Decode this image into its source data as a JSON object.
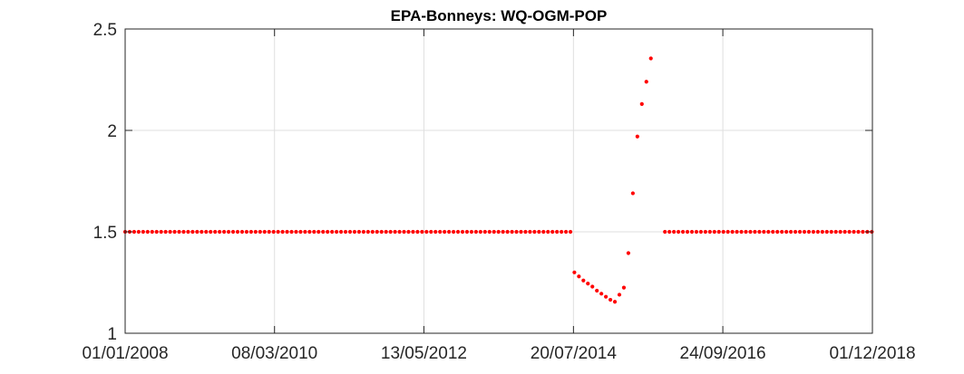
{
  "chart_data": {
    "type": "scatter",
    "title": "EPA-Bonneys: WQ-OGM-POP",
    "xlabel": "",
    "ylabel": "",
    "x_axis_type": "date",
    "x_range": [
      "2008-01-01",
      "2018-12-01"
    ],
    "ylim": [
      1,
      2.5
    ],
    "grid": true,
    "marker_color": "#ff0000",
    "x_ticks": [
      {
        "date": "2008-01-01",
        "label": "01/01/2008"
      },
      {
        "date": "2010-03-08",
        "label": "08/03/2010"
      },
      {
        "date": "2012-05-13",
        "label": "13/05/2012"
      },
      {
        "date": "2014-07-20",
        "label": "20/07/2014"
      },
      {
        "date": "2016-09-24",
        "label": "24/09/2016"
      },
      {
        "date": "2018-12-01",
        "label": "01/12/2018"
      }
    ],
    "y_ticks": [
      {
        "value": 1,
        "label": "1"
      },
      {
        "value": 1.5,
        "label": "1.5"
      },
      {
        "value": 2,
        "label": "2"
      },
      {
        "value": 2.5,
        "label": "2.5"
      }
    ],
    "segments": [
      {
        "start": "2008-01-01",
        "end": "2014-07-13",
        "step_days": 24,
        "value": 1.5
      },
      {
        "start": "2015-11-20",
        "end": "2018-12-01",
        "step_days": 24,
        "value": 1.5
      }
    ],
    "points": [
      {
        "x": "2014-07-25",
        "y": 1.3
      },
      {
        "x": "2014-08-18",
        "y": 1.28
      },
      {
        "x": "2014-09-11",
        "y": 1.26
      },
      {
        "x": "2014-10-05",
        "y": 1.245
      },
      {
        "x": "2014-10-29",
        "y": 1.23
      },
      {
        "x": "2014-11-22",
        "y": 1.21
      },
      {
        "x": "2014-12-16",
        "y": 1.195
      },
      {
        "x": "2015-01-09",
        "y": 1.18
      },
      {
        "x": "2015-02-02",
        "y": 1.165
      },
      {
        "x": "2015-02-26",
        "y": 1.155
      },
      {
        "x": "2015-03-22",
        "y": 1.19
      },
      {
        "x": "2015-04-15",
        "y": 1.225
      },
      {
        "x": "2015-05-09",
        "y": 1.395
      },
      {
        "x": "2015-06-02",
        "y": 1.69
      },
      {
        "x": "2015-06-26",
        "y": 1.97
      },
      {
        "x": "2015-07-20",
        "y": 2.13
      },
      {
        "x": "2015-08-13",
        "y": 2.24
      },
      {
        "x": "2015-09-06",
        "y": 2.355
      }
    ]
  }
}
